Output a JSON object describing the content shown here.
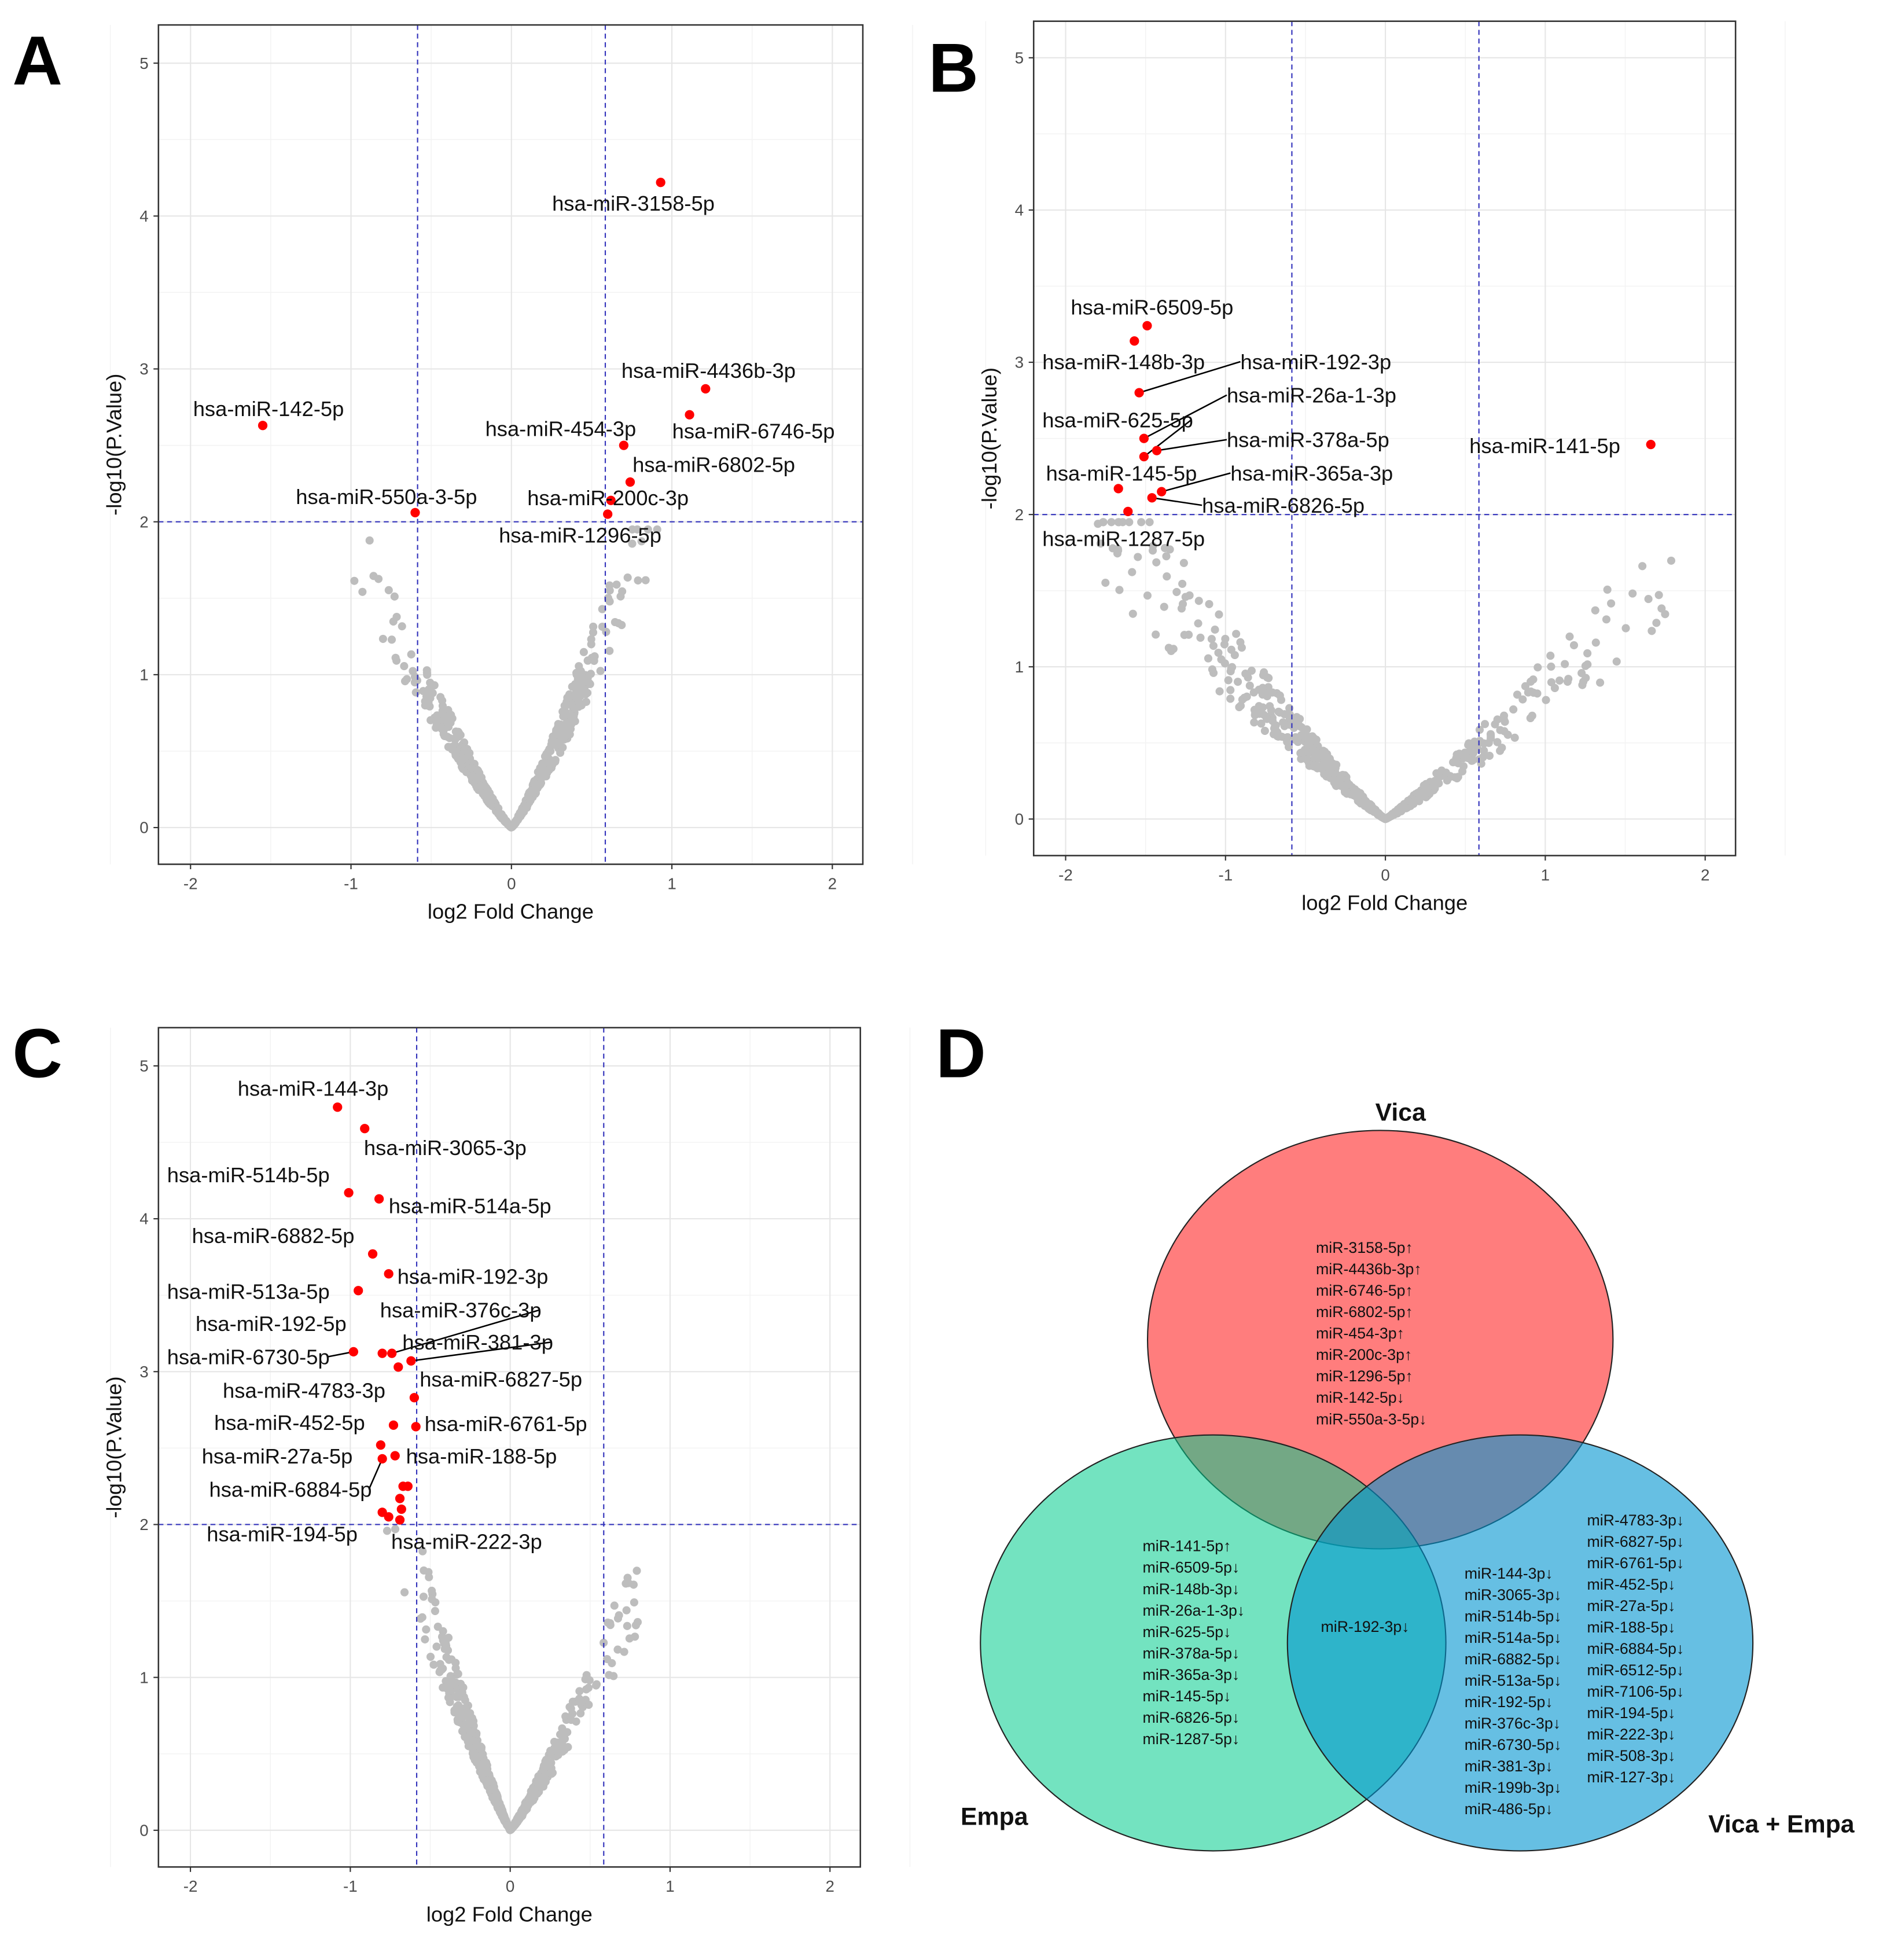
{
  "panel_letters": [
    "A",
    "B",
    "C",
    "D"
  ],
  "chart_data": [
    {
      "type": "scatter",
      "panel": "A",
      "xlabel": "log2 Fold Change",
      "ylabel": "-log10(P.Value)",
      "xlim": [
        -2.2,
        2.19
      ],
      "ylim": [
        -0.24,
        5.25
      ],
      "xticks": [
        -2,
        -1,
        0,
        1,
        2
      ],
      "yticks": [
        0,
        1,
        2,
        3,
        4,
        5
      ],
      "thresholds": {
        "x": [
          -0.585,
          0.585
        ],
        "y": 2
      },
      "grid": true,
      "background_color": "#bdbdbd",
      "highlight_color": "#ff0000",
      "threshold_color": "#3333bb",
      "highlighted": [
        {
          "label": "hsa-miR-3158-5p",
          "x": 0.93,
          "y": 4.22
        },
        {
          "label": "hsa-miR-4436b-3p",
          "x": 1.21,
          "y": 2.87
        },
        {
          "label": "hsa-miR-6746-5p",
          "x": 1.11,
          "y": 2.7
        },
        {
          "label": "hsa-miR-6802-5p",
          "x": 0.74,
          "y": 2.26
        },
        {
          "label": "hsa-miR-454-3p",
          "x": 0.7,
          "y": 2.5
        },
        {
          "label": "hsa-miR-200c-3p",
          "x": 0.62,
          "y": 2.14
        },
        {
          "label": "hsa-miR-1296-5p",
          "x": 0.6,
          "y": 2.05
        },
        {
          "label": "hsa-miR-142-5p",
          "x": -1.55,
          "y": 2.63
        },
        {
          "label": "hsa-miR-550a-3-5p",
          "x": -0.6,
          "y": 2.06
        }
      ]
    },
    {
      "type": "scatter",
      "panel": "B",
      "xlabel": "log2 Fold Change",
      "ylabel": "-log10(P.Value)",
      "xlim": [
        -2.2,
        2.19
      ],
      "ylim": [
        -0.24,
        5.24
      ],
      "xticks": [
        -2,
        -1,
        0,
        1,
        2
      ],
      "yticks": [
        0,
        1,
        2,
        3,
        4,
        5
      ],
      "thresholds": {
        "x": [
          -0.585,
          0.585
        ],
        "y": 2
      },
      "grid": true,
      "background_color": "#bdbdbd",
      "highlight_color": "#ff0000",
      "threshold_color": "#3333bb",
      "highlighted": [
        {
          "label": "hsa-miR-6509-5p",
          "x": -1.49,
          "y": 3.24
        },
        {
          "label": "hsa-miR-148b-3p",
          "x": -1.57,
          "y": 3.14
        },
        {
          "label": "hsa-miR-192-3p",
          "x": -1.54,
          "y": 2.8
        },
        {
          "label": "hsa-miR-26a-1-3p",
          "x": -1.51,
          "y": 2.5
        },
        {
          "label": "hsa-miR-625-5p",
          "x": -1.51,
          "y": 2.38
        },
        {
          "label": "hsa-miR-378a-5p",
          "x": -1.43,
          "y": 2.42
        },
        {
          "label": "hsa-miR-145-5p",
          "x": -1.67,
          "y": 2.17
        },
        {
          "label": "hsa-miR-365a-3p",
          "x": -1.4,
          "y": 2.15
        },
        {
          "label": "hsa-miR-6826-5p",
          "x": -1.46,
          "y": 2.11
        },
        {
          "label": "hsa-miR-1287-5p",
          "x": -1.61,
          "y": 2.02
        },
        {
          "label": "hsa-miR-141-5p",
          "x": 1.66,
          "y": 2.46
        }
      ]
    },
    {
      "type": "scatter",
      "panel": "C",
      "xlabel": "log2 Fold Change",
      "ylabel": "-log10(P.Value)",
      "xlim": [
        -2.2,
        2.19
      ],
      "ylim": [
        -0.24,
        5.25
      ],
      "xticks": [
        -2,
        -1,
        0,
        1,
        2
      ],
      "yticks": [
        0,
        1,
        2,
        3,
        4,
        5
      ],
      "thresholds": {
        "x": [
          -0.585,
          0.585
        ],
        "y": 2
      },
      "grid": true,
      "background_color": "#bdbdbd",
      "highlight_color": "#ff0000",
      "threshold_color": "#3333bb",
      "highlighted": [
        {
          "label": "hsa-miR-144-3p",
          "x": -1.08,
          "y": 4.73
        },
        {
          "label": "hsa-miR-3065-3p",
          "x": -0.91,
          "y": 4.59
        },
        {
          "label": "hsa-miR-514b-5p",
          "x": -1.01,
          "y": 4.17
        },
        {
          "label": "hsa-miR-514a-5p",
          "x": -0.82,
          "y": 4.13
        },
        {
          "label": "hsa-miR-6882-5p",
          "x": -0.86,
          "y": 3.77
        },
        {
          "label": "hsa-miR-192-3p",
          "x": -0.76,
          "y": 3.64
        },
        {
          "label": "hsa-miR-513a-5p",
          "x": -0.95,
          "y": 3.53
        },
        {
          "label": "hsa-miR-376c-3p",
          "x": -0.74,
          "y": 3.12
        },
        {
          "label": "hsa-miR-192-5p",
          "x": -0.8,
          "y": 3.12
        },
        {
          "label": "hsa-miR-6730-5p",
          "x": -0.98,
          "y": 3.13
        },
        {
          "label": "hsa-miR-381-3p",
          "x": -0.62,
          "y": 3.07
        },
        {
          "label": "hsa-miR-6827-5p",
          "x": -0.7,
          "y": 3.03
        },
        {
          "label": "hsa-miR-4783-3p",
          "x": -0.6,
          "y": 2.83
        },
        {
          "label": "hsa-miR-452-5p",
          "x": -0.73,
          "y": 2.65
        },
        {
          "label": "hsa-miR-6761-5p",
          "x": -0.59,
          "y": 2.64
        },
        {
          "label": "hsa-miR-27a-5p",
          "x": -0.81,
          "y": 2.52
        },
        {
          "label": "hsa-miR-188-5p",
          "x": -0.72,
          "y": 2.45
        },
        {
          "label": "hsa-miR-6884-5p",
          "x": -0.8,
          "y": 2.43
        },
        {
          "label": "hsa-miR-194-5p",
          "x": -0.8,
          "y": 2.08
        },
        {
          "label": "hsa-miR-222-3p",
          "x": -0.69,
          "y": 2.03
        },
        {
          "label": "",
          "x": -0.67,
          "y": 2.25
        },
        {
          "label": "",
          "x": -0.64,
          "y": 2.25
        },
        {
          "label": "",
          "x": -0.69,
          "y": 2.17
        },
        {
          "label": "",
          "x": -0.68,
          "y": 2.1
        },
        {
          "label": "",
          "x": -0.76,
          "y": 2.05
        }
      ]
    }
  ],
  "venn": {
    "colors": {
      "vica": "#ff7070",
      "empa": "#00cc8c",
      "vica_empa": "#0095d0"
    },
    "sets": {
      "vica": "Vica",
      "empa": "Empa",
      "vica_empa": "Vica + Empa"
    },
    "vica_only": [
      "miR-3158-5p↑",
      "miR-4436b-3p↑",
      "miR-6746-5p↑",
      "miR-6802-5p↑",
      "miR-454-3p↑",
      "miR-200c-3p↑",
      "miR-1296-5p↑",
      "miR-142-5p↓",
      "miR-550a-3-5p↓"
    ],
    "empa_only": [
      "miR-141-5p↑",
      "miR-6509-5p↓",
      "miR-148b-3p↓",
      "miR-26a-1-3p↓",
      "miR-625-5p↓",
      "miR-378a-5p↓",
      "miR-365a-3p↓",
      "miR-145-5p↓",
      "miR-6826-5p↓",
      "miR-1287-5p↓"
    ],
    "empa_and_vica_empa": [
      "miR-192-3p↓"
    ],
    "vica_empa_only_col1": [
      "miR-144-3p↓",
      "miR-3065-3p↓",
      "miR-514b-5p↓",
      "miR-514a-5p↓",
      "miR-6882-5p↓",
      "miR-513a-5p↓",
      "miR-192-5p↓",
      "miR-376c-3p↓",
      "miR-6730-5p↓",
      "miR-381-3p↓",
      "miR-199b-3p↓",
      "miR-486-5p↓"
    ],
    "vica_empa_only_col2": [
      "miR-4783-3p↓",
      "miR-6827-5p↓",
      "miR-6761-5p↓",
      "miR-452-5p↓",
      "miR-27a-5p↓",
      "miR-188-5p↓",
      "miR-6884-5p↓",
      "miR-6512-5p↓",
      "miR-7106-5p↓",
      "miR-194-5p↓",
      "miR-222-3p↓",
      "miR-508-3p↓",
      "miR-127-3p↓"
    ]
  }
}
